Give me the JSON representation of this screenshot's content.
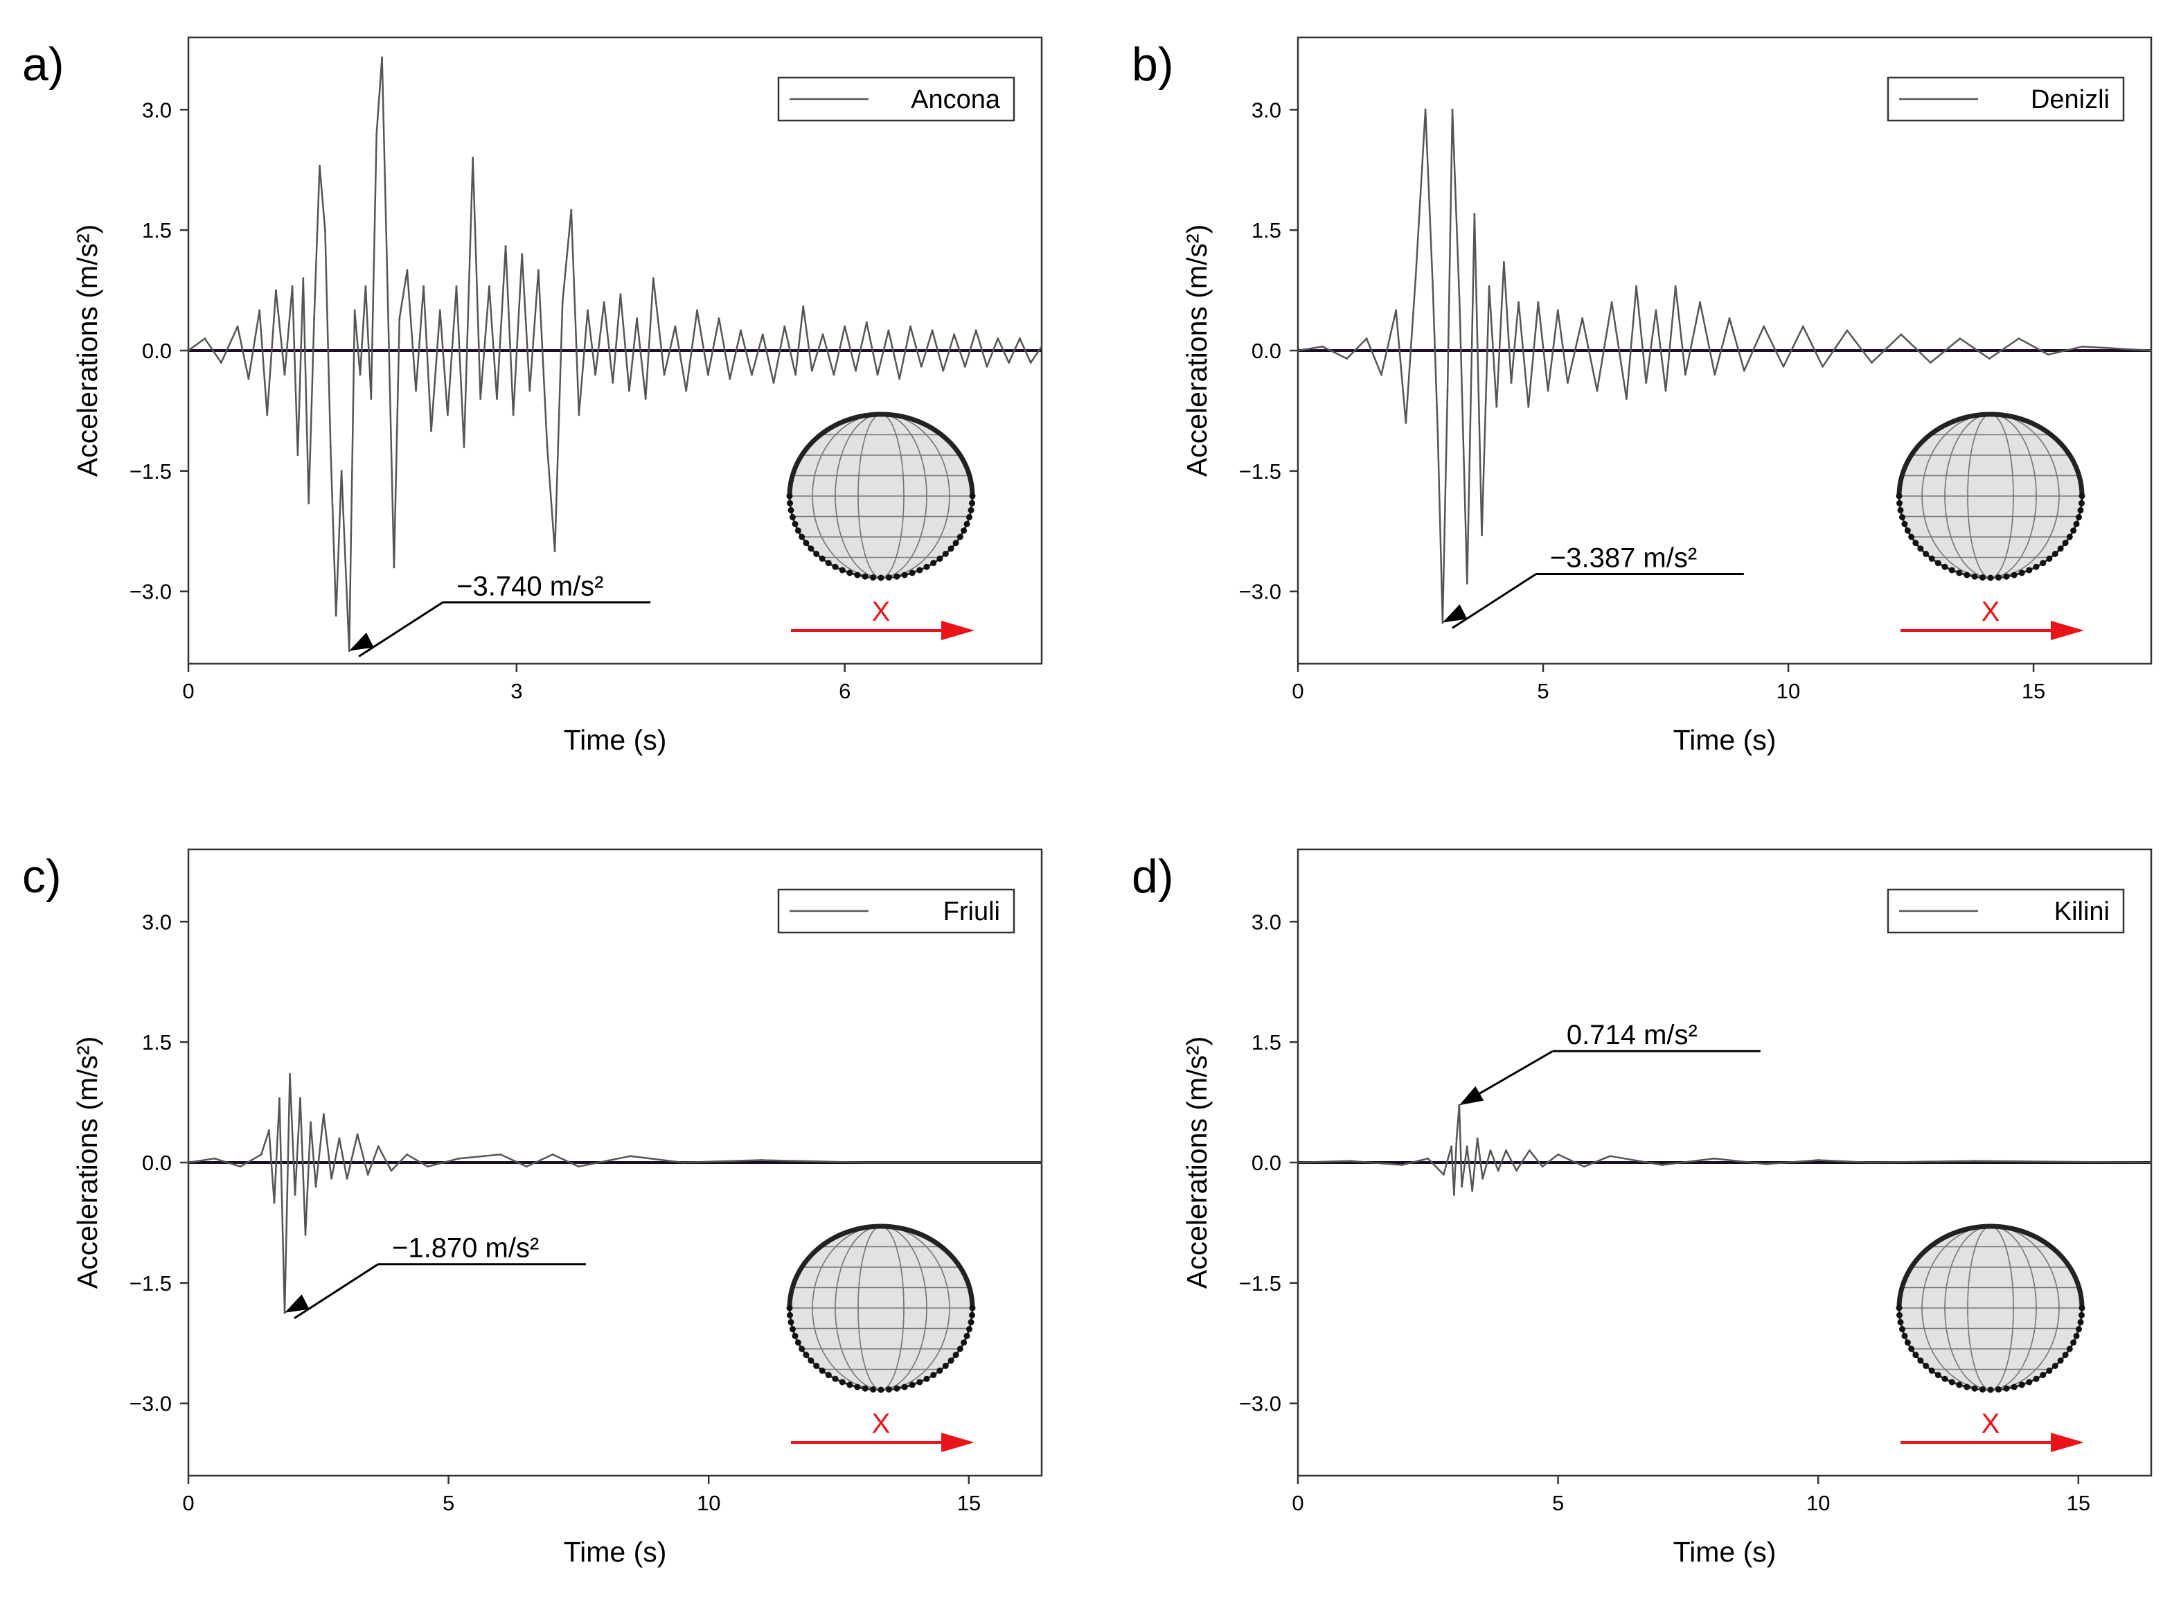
{
  "chart_data": [
    {
      "panel_label": "a)",
      "type": "line",
      "legend": "Ancona",
      "xlabel": "Time (s)",
      "ylabel": "Accelerations (m/s²)",
      "xlim": [
        0,
        7.8
      ],
      "ylim": [
        -3.9,
        3.9
      ],
      "xticks": [
        0,
        3,
        6
      ],
      "xtick_labels": [
        "0",
        "3",
        "6"
      ],
      "yticks": [
        3.0,
        1.5,
        0.0,
        -1.5,
        -3.0
      ],
      "ytick_labels": [
        "3.0",
        "1.5",
        "0.0",
        "−1.5",
        "−3.0"
      ],
      "legend_position": "top-right",
      "annotation": {
        "text": "−3.740 m/s²",
        "x": 1.47,
        "y": -3.74
      },
      "direction_label": "X",
      "series": [
        {
          "values": [
            [
              0.0,
              0.0
            ],
            [
              0.15,
              0.15
            ],
            [
              0.3,
              -0.15
            ],
            [
              0.45,
              0.3
            ],
            [
              0.55,
              -0.35
            ],
            [
              0.65,
              0.5
            ],
            [
              0.72,
              -0.8
            ],
            [
              0.8,
              0.75
            ],
            [
              0.88,
              -0.3
            ],
            [
              0.95,
              0.8
            ],
            [
              1.0,
              -1.3
            ],
            [
              1.05,
              0.9
            ],
            [
              1.1,
              -1.9
            ],
            [
              1.15,
              0.4
            ],
            [
              1.2,
              2.3
            ],
            [
              1.25,
              1.5
            ],
            [
              1.3,
              -1.2
            ],
            [
              1.35,
              -3.3
            ],
            [
              1.4,
              -1.5
            ],
            [
              1.47,
              -3.74
            ],
            [
              1.52,
              0.5
            ],
            [
              1.57,
              -0.3
            ],
            [
              1.62,
              0.8
            ],
            [
              1.67,
              -0.6
            ],
            [
              1.72,
              2.7
            ],
            [
              1.77,
              3.65
            ],
            [
              1.82,
              0.8
            ],
            [
              1.88,
              -2.7
            ],
            [
              1.93,
              0.4
            ],
            [
              2.0,
              1.0
            ],
            [
              2.08,
              -0.5
            ],
            [
              2.15,
              0.8
            ],
            [
              2.22,
              -1.0
            ],
            [
              2.3,
              0.5
            ],
            [
              2.37,
              -0.8
            ],
            [
              2.45,
              0.8
            ],
            [
              2.52,
              -1.2
            ],
            [
              2.6,
              2.4
            ],
            [
              2.67,
              -0.6
            ],
            [
              2.75,
              0.8
            ],
            [
              2.82,
              -0.6
            ],
            [
              2.9,
              1.3
            ],
            [
              2.97,
              -0.8
            ],
            [
              3.05,
              1.2
            ],
            [
              3.12,
              -0.5
            ],
            [
              3.2,
              1.0
            ],
            [
              3.28,
              -1.2
            ],
            [
              3.35,
              -2.5
            ],
            [
              3.42,
              0.6
            ],
            [
              3.5,
              1.75
            ],
            [
              3.57,
              -0.8
            ],
            [
              3.65,
              0.5
            ],
            [
              3.72,
              -0.3
            ],
            [
              3.8,
              0.6
            ],
            [
              3.88,
              -0.4
            ],
            [
              3.95,
              0.7
            ],
            [
              4.03,
              -0.5
            ],
            [
              4.1,
              0.4
            ],
            [
              4.18,
              -0.6
            ],
            [
              4.25,
              0.9
            ],
            [
              4.35,
              -0.3
            ],
            [
              4.45,
              0.3
            ],
            [
              4.55,
              -0.5
            ],
            [
              4.65,
              0.5
            ],
            [
              4.75,
              -0.3
            ],
            [
              4.85,
              0.4
            ],
            [
              4.95,
              -0.35
            ],
            [
              5.05,
              0.25
            ],
            [
              5.15,
              -0.3
            ],
            [
              5.25,
              0.2
            ],
            [
              5.35,
              -0.4
            ],
            [
              5.45,
              0.3
            ],
            [
              5.55,
              -0.3
            ],
            [
              5.62,
              0.55
            ],
            [
              5.7,
              -0.25
            ],
            [
              5.8,
              0.2
            ],
            [
              5.9,
              -0.3
            ],
            [
              6.0,
              0.3
            ],
            [
              6.1,
              -0.25
            ],
            [
              6.2,
              0.35
            ],
            [
              6.3,
              -0.3
            ],
            [
              6.4,
              0.25
            ],
            [
              6.5,
              -0.35
            ],
            [
              6.6,
              0.3
            ],
            [
              6.7,
              -0.2
            ],
            [
              6.8,
              0.25
            ],
            [
              6.9,
              -0.25
            ],
            [
              7.0,
              0.2
            ],
            [
              7.1,
              -0.2
            ],
            [
              7.2,
              0.25
            ],
            [
              7.3,
              -0.2
            ],
            [
              7.4,
              0.15
            ],
            [
              7.5,
              -0.15
            ],
            [
              7.6,
              0.15
            ],
            [
              7.7,
              -0.15
            ],
            [
              7.8,
              0.05
            ]
          ]
        }
      ]
    },
    {
      "panel_label": "b)",
      "type": "line",
      "legend": "Denizli",
      "xlabel": "Time (s)",
      "ylabel": "Accelerations (m/s²)",
      "xlim": [
        0,
        17.4
      ],
      "ylim": [
        -3.9,
        3.9
      ],
      "xticks": [
        0,
        5,
        10,
        15
      ],
      "xtick_labels": [
        "0",
        "5",
        "10",
        "15"
      ],
      "yticks": [
        3.0,
        1.5,
        0.0,
        -1.5,
        -3.0
      ],
      "ytick_labels": [
        "3.0",
        "1.5",
        "0.0",
        "−1.5",
        "−3.0"
      ],
      "legend_position": "top-right",
      "annotation": {
        "text": "−3.387 m/s²",
        "x": 2.95,
        "y": -3.387
      },
      "direction_label": "X",
      "series": [
        {
          "values": [
            [
              0.0,
              0.0
            ],
            [
              0.5,
              0.05
            ],
            [
              1.0,
              -0.1
            ],
            [
              1.4,
              0.15
            ],
            [
              1.7,
              -0.3
            ],
            [
              2.0,
              0.5
            ],
            [
              2.2,
              -0.9
            ],
            [
              2.4,
              0.9
            ],
            [
              2.6,
              3.0
            ],
            [
              2.75,
              0.8
            ],
            [
              2.85,
              -1.0
            ],
            [
              2.95,
              -3.39
            ],
            [
              3.05,
              -0.5
            ],
            [
              3.15,
              3.0
            ],
            [
              3.3,
              0.5
            ],
            [
              3.45,
              -2.9
            ],
            [
              3.6,
              1.7
            ],
            [
              3.75,
              -2.3
            ],
            [
              3.9,
              0.8
            ],
            [
              4.05,
              -0.7
            ],
            [
              4.2,
              1.1
            ],
            [
              4.35,
              -0.4
            ],
            [
              4.5,
              0.6
            ],
            [
              4.7,
              -0.7
            ],
            [
              4.9,
              0.6
            ],
            [
              5.1,
              -0.5
            ],
            [
              5.3,
              0.5
            ],
            [
              5.5,
              -0.4
            ],
            [
              5.8,
              0.4
            ],
            [
              6.1,
              -0.5
            ],
            [
              6.4,
              0.6
            ],
            [
              6.7,
              -0.6
            ],
            [
              6.9,
              0.8
            ],
            [
              7.1,
              -0.4
            ],
            [
              7.3,
              0.5
            ],
            [
              7.5,
              -0.5
            ],
            [
              7.7,
              0.8
            ],
            [
              7.9,
              -0.3
            ],
            [
              8.2,
              0.6
            ],
            [
              8.5,
              -0.3
            ],
            [
              8.8,
              0.4
            ],
            [
              9.1,
              -0.25
            ],
            [
              9.5,
              0.3
            ],
            [
              9.9,
              -0.2
            ],
            [
              10.3,
              0.3
            ],
            [
              10.7,
              -0.2
            ],
            [
              11.2,
              0.25
            ],
            [
              11.7,
              -0.15
            ],
            [
              12.3,
              0.2
            ],
            [
              12.9,
              -0.15
            ],
            [
              13.5,
              0.15
            ],
            [
              14.1,
              -0.1
            ],
            [
              14.7,
              0.15
            ],
            [
              15.3,
              -0.05
            ],
            [
              16.0,
              0.05
            ],
            [
              17.4,
              0.0
            ]
          ]
        }
      ]
    },
    {
      "panel_label": "c)",
      "type": "line",
      "legend": "Friuli",
      "xlabel": "Time (s)",
      "ylabel": "Accelerations (m/s²)",
      "xlim": [
        0,
        16.4
      ],
      "ylim": [
        -3.9,
        3.9
      ],
      "xticks": [
        0,
        5,
        10,
        15
      ],
      "xtick_labels": [
        "0",
        "5",
        "10",
        "15"
      ],
      "yticks": [
        3.0,
        1.5,
        0.0,
        -1.5,
        -3.0
      ],
      "ytick_labels": [
        "3.0",
        "1.5",
        "0.0",
        "−1.5",
        "−3.0"
      ],
      "legend_position": "top-right",
      "annotation": {
        "text": "−1.870 m/s²",
        "x": 1.85,
        "y": -1.87
      },
      "direction_label": "X",
      "series": [
        {
          "values": [
            [
              0.0,
              0.0
            ],
            [
              0.5,
              0.05
            ],
            [
              1.0,
              -0.05
            ],
            [
              1.4,
              0.1
            ],
            [
              1.55,
              0.4
            ],
            [
              1.65,
              -0.5
            ],
            [
              1.75,
              0.8
            ],
            [
              1.85,
              -1.87
            ],
            [
              1.95,
              1.1
            ],
            [
              2.05,
              -0.4
            ],
            [
              2.15,
              0.8
            ],
            [
              2.25,
              -0.9
            ],
            [
              2.35,
              0.5
            ],
            [
              2.45,
              -0.3
            ],
            [
              2.6,
              0.6
            ],
            [
              2.75,
              -0.2
            ],
            [
              2.9,
              0.3
            ],
            [
              3.05,
              -0.2
            ],
            [
              3.25,
              0.35
            ],
            [
              3.45,
              -0.15
            ],
            [
              3.65,
              0.2
            ],
            [
              3.9,
              -0.1
            ],
            [
              4.2,
              0.1
            ],
            [
              4.6,
              -0.05
            ],
            [
              5.2,
              0.05
            ],
            [
              6.0,
              0.1
            ],
            [
              6.5,
              -0.05
            ],
            [
              7.0,
              0.1
            ],
            [
              7.5,
              -0.05
            ],
            [
              8.5,
              0.08
            ],
            [
              9.5,
              0.0
            ],
            [
              11.0,
              0.03
            ],
            [
              13.0,
              0.0
            ],
            [
              16.4,
              0.0
            ]
          ]
        }
      ]
    },
    {
      "panel_label": "d)",
      "type": "line",
      "legend": "Kilini",
      "xlabel": "Time (s)",
      "ylabel": "Accelerations (m/s²)",
      "xlim": [
        0,
        16.4
      ],
      "ylim": [
        -3.9,
        3.9
      ],
      "xticks": [
        0,
        5,
        10,
        15
      ],
      "xtick_labels": [
        "0",
        "5",
        "10",
        "15"
      ],
      "yticks": [
        3.0,
        1.5,
        0.0,
        -1.5,
        -3.0
      ],
      "ytick_labels": [
        "3.0",
        "1.5",
        "0.0",
        "−1.5",
        "−3.0"
      ],
      "legend_position": "top-right",
      "annotation": {
        "text": "0.714 m/s²",
        "x": 3.1,
        "y": 0.714
      },
      "direction_label": "X",
      "series": [
        {
          "values": [
            [
              0.0,
              0.0
            ],
            [
              1.0,
              0.02
            ],
            [
              2.0,
              -0.03
            ],
            [
              2.5,
              0.05
            ],
            [
              2.8,
              -0.15
            ],
            [
              2.95,
              0.2
            ],
            [
              3.0,
              -0.4
            ],
            [
              3.05,
              0.3
            ],
            [
              3.1,
              0.714
            ],
            [
              3.15,
              -0.3
            ],
            [
              3.25,
              0.2
            ],
            [
              3.35,
              -0.35
            ],
            [
              3.45,
              0.3
            ],
            [
              3.55,
              -0.2
            ],
            [
              3.7,
              0.15
            ],
            [
              3.85,
              -0.1
            ],
            [
              4.0,
              0.15
            ],
            [
              4.2,
              -0.1
            ],
            [
              4.45,
              0.15
            ],
            [
              4.7,
              -0.05
            ],
            [
              5.0,
              0.1
            ],
            [
              5.5,
              -0.05
            ],
            [
              6.0,
              0.08
            ],
            [
              7.0,
              -0.03
            ],
            [
              8.0,
              0.05
            ],
            [
              9.0,
              -0.02
            ],
            [
              10.0,
              0.03
            ],
            [
              11.0,
              0.0
            ],
            [
              13.0,
              0.02
            ],
            [
              16.4,
              0.0
            ]
          ]
        }
      ]
    }
  ]
}
